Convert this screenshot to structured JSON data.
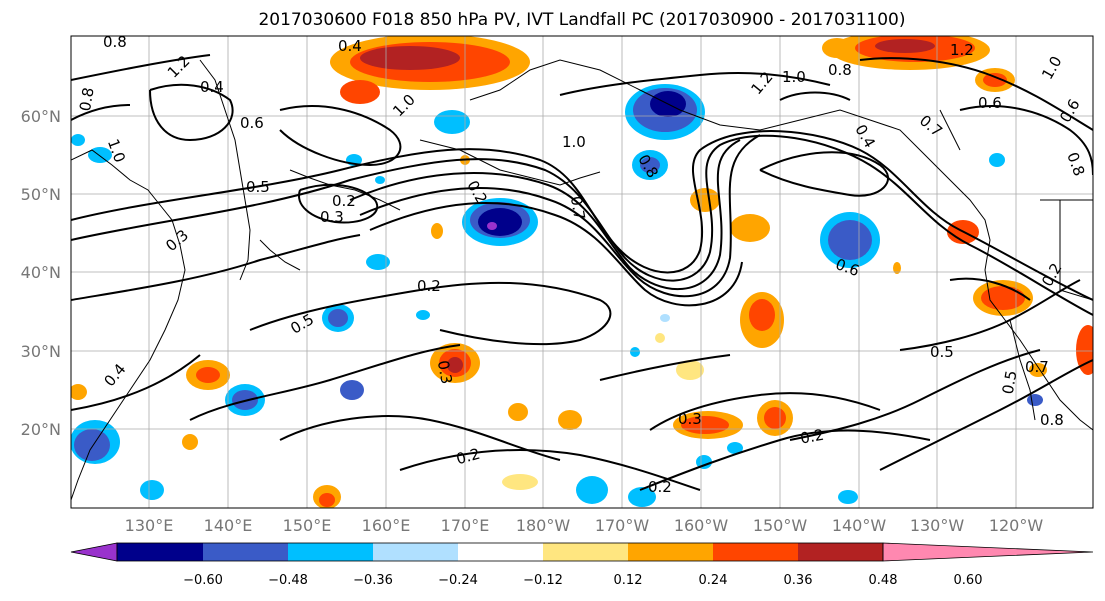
{
  "title": "2017030600 F018 850 hPa PV, IVT Landfall PC (2017030900 - 2017031100)",
  "lat_labels": [
    "60°N",
    "50°N",
    "40°N",
    "30°N",
    "20°N"
  ],
  "lon_labels": [
    "130°E",
    "140°E",
    "150°E",
    "160°E",
    "170°E",
    "180°W",
    "170°W",
    "160°W",
    "150°W",
    "140°W",
    "130°W",
    "120°W"
  ],
  "colorbar": {
    "tick_labels": [
      "−0.60",
      "−0.48",
      "−0.36",
      "−0.24",
      "−0.12",
      "0.12",
      "0.24",
      "0.36",
      "0.48",
      "0.60"
    ],
    "colors": [
      "#9932cc",
      "#00008b",
      "#3a5bc7",
      "#00bfff",
      "#b0e0ff",
      "#ffffff",
      "#ffe680",
      "#ffa500",
      "#ff4500",
      "#b22222",
      "#ff88b0"
    ]
  },
  "contour_labels": [
    "0.8",
    "0.4",
    "1.2",
    "0.6",
    "1.0",
    "0.8",
    "1.0",
    "0.5",
    "0.2",
    "0.3",
    "0.2",
    "1.0",
    "0.2",
    "0.8",
    "0.5",
    "0.3",
    "0.3",
    "0.4",
    "0.5",
    "0.2",
    "0.3",
    "0.6",
    "1.2",
    "1.0",
    "0.6",
    "0.4",
    "0.2",
    "0.7",
    "0.5",
    "0.7",
    "0.8",
    "0.2",
    "1.2",
    "0.8",
    "0.7",
    "1.0",
    "0.6",
    "0.4",
    "0.2",
    "0.8"
  ]
}
